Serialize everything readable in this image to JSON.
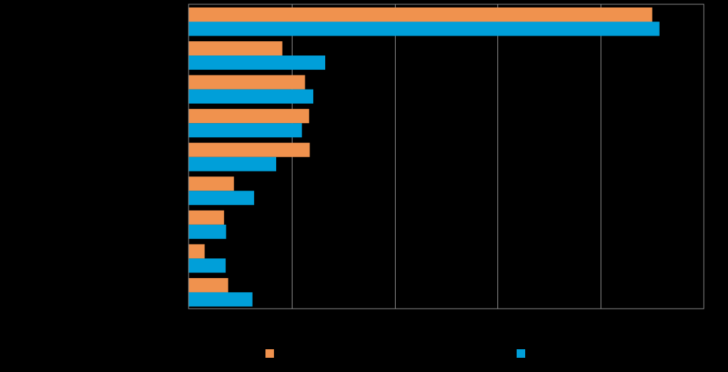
{
  "chart_data": {
    "type": "bar",
    "orientation": "horizontal",
    "categories": [
      "",
      "",
      "",
      "",
      "",
      "",
      "",
      "",
      ""
    ],
    "series": [
      {
        "color": "#f0924e",
        "values": [
          22.5,
          4.55,
          5.65,
          5.85,
          5.88,
          2.2,
          1.72,
          0.78,
          1.92
        ]
      },
      {
        "color": "#009fd9",
        "values": [
          22.85,
          6.63,
          6.05,
          5.5,
          4.25,
          3.18,
          1.82,
          1.8,
          3.1
        ]
      }
    ],
    "xlim": [
      0,
      25
    ],
    "grid": true,
    "legend_position": "bottom"
  }
}
